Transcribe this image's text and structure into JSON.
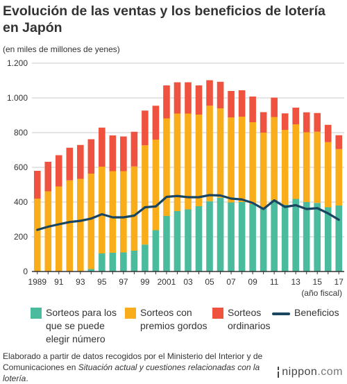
{
  "title": "Evolución de las ventas y los beneficios de lotería en Japón",
  "unit_label": "(en miles de millones de yenes)",
  "x_axis_note": "(año fiscal)",
  "legend": [
    {
      "key": "numbers",
      "label": "Sorteos para los que se puede elegir número",
      "color": "#4bbb9e",
      "kind": "box"
    },
    {
      "key": "jackpot",
      "label": "Sorteos con premios gordos",
      "color": "#f9ad1b",
      "kind": "box"
    },
    {
      "key": "ordinary",
      "label": "Sorteos ordinarios",
      "color": "#ef5340",
      "kind": "box"
    },
    {
      "key": "profit",
      "label": "Beneficios",
      "color": "#1a4560",
      "kind": "line"
    }
  ],
  "source": {
    "prefix": "Elaborado a partir de datos recogidos por el Ministerio del Interior y de Comunicaciones en ",
    "italic": "Situación actual y cuestiones relacionadas con la lotería",
    "suffix": "."
  },
  "brand": {
    "name": "nippon",
    "domain": ".com"
  },
  "chart_data": {
    "type": "bar",
    "stacked": true,
    "categories": [
      "1989",
      "1990",
      "1991",
      "1992",
      "1993",
      "1994",
      "1995",
      "1996",
      "1997",
      "1998",
      "1999",
      "2000",
      "2001",
      "2002",
      "2003",
      "2004",
      "2005",
      "2006",
      "2007",
      "2008",
      "2009",
      "2010",
      "2011",
      "2012",
      "2013",
      "2014",
      "2015",
      "2016",
      "2017"
    ],
    "tick_labels": [
      "1989",
      "",
      "91",
      "",
      "93",
      "",
      "95",
      "",
      "97",
      "",
      "99",
      "",
      "2001",
      "",
      "03",
      "",
      "05",
      "",
      "07",
      "",
      "09",
      "",
      "11",
      "",
      "13",
      "",
      "15",
      "",
      "17"
    ],
    "ylim": [
      0,
      1200
    ],
    "yticks": [
      0,
      200,
      400,
      600,
      800,
      1000,
      1200
    ],
    "ytick_labels": [
      "0",
      "200",
      "400",
      "600",
      "800",
      "1.000",
      "1.200"
    ],
    "grid": true,
    "legend_position": "bottom",
    "series": [
      {
        "key": "numbers",
        "values": [
          0,
          0,
          0,
          0,
          0,
          14,
          104,
          108,
          110,
          120,
          155,
          238,
          320,
          348,
          358,
          376,
          405,
          425,
          398,
          400,
          388,
          370,
          410,
          384,
          418,
          400,
          395,
          370,
          380
        ]
      },
      {
        "key": "jackpot",
        "values": [
          420,
          462,
          490,
          525,
          534,
          550,
          500,
          470,
          468,
          485,
          572,
          522,
          562,
          562,
          552,
          528,
          550,
          515,
          490,
          492,
          472,
          430,
          480,
          432,
          430,
          402,
          410,
          375,
          325
        ]
      },
      {
        "key": "ordinary",
        "values": [
          160,
          170,
          180,
          188,
          195,
          198,
          225,
          206,
          200,
          200,
          200,
          195,
          190,
          180,
          180,
          168,
          147,
          153,
          152,
          152,
          148,
          118,
          112,
          95,
          96,
          115,
          108,
          100,
          80
        ]
      },
      {
        "key": "profit",
        "type": "line",
        "values": [
          240,
          258,
          272,
          285,
          292,
          305,
          330,
          312,
          312,
          322,
          370,
          375,
          430,
          435,
          428,
          428,
          440,
          438,
          420,
          415,
          395,
          360,
          410,
          372,
          382,
          360,
          365,
          335,
          298
        ]
      }
    ]
  }
}
